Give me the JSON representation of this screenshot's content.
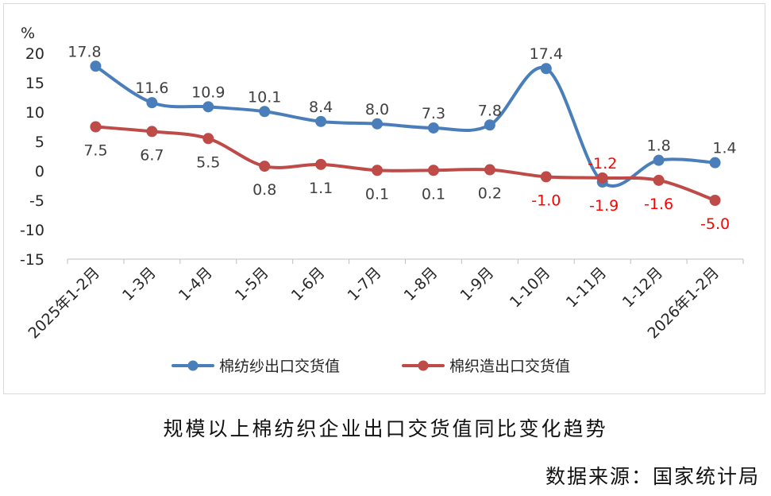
{
  "chart_data": {
    "type": "line",
    "y_unit": "%",
    "ylim": [
      -15,
      20
    ],
    "yticks": [
      20,
      15,
      10,
      5,
      0,
      -5,
      -10,
      -15
    ],
    "categories": [
      "2025年1-2月",
      "1-3月",
      "1-4月",
      "1-5月",
      "1-6月",
      "1-7月",
      "1-8月",
      "1-9月",
      "1-10月",
      "1-11月",
      "1-12月",
      "2026年1-2月"
    ],
    "grid": false,
    "legend_position": "bottom",
    "series": [
      {
        "name": "棉纺纱出口交货值",
        "color": "#4a7ebb",
        "values": [
          17.8,
          11.6,
          10.9,
          10.1,
          8.4,
          8.0,
          7.3,
          7.8,
          17.4,
          -1.9,
          1.8,
          1.4
        ],
        "labels": [
          "17.8",
          "11.6",
          "10.9",
          "10.1",
          "8.4",
          "8.0",
          "7.3",
          "7.8",
          "17.4",
          "-1.9",
          "1.8",
          "1.4"
        ]
      },
      {
        "name": "棉织造出口交货值",
        "color": "#be4b48",
        "values": [
          7.5,
          6.7,
          5.5,
          0.8,
          1.1,
          0.1,
          0.1,
          0.2,
          -1.0,
          -1.2,
          -1.6,
          -5.0
        ],
        "labels": [
          "7.5",
          "6.7",
          "5.5",
          "0.8",
          "1.1",
          "0.1",
          "0.1",
          "0.2",
          "-1.0",
          "-1.2",
          "-1.6",
          "-5.0"
        ]
      }
    ],
    "label_colors": {
      "positive": "#404040",
      "negative": "#ff0000"
    }
  },
  "caption": "规模以上棉纺织企业出口交货值同比变化趋势",
  "source": "数据来源：国家统计局"
}
